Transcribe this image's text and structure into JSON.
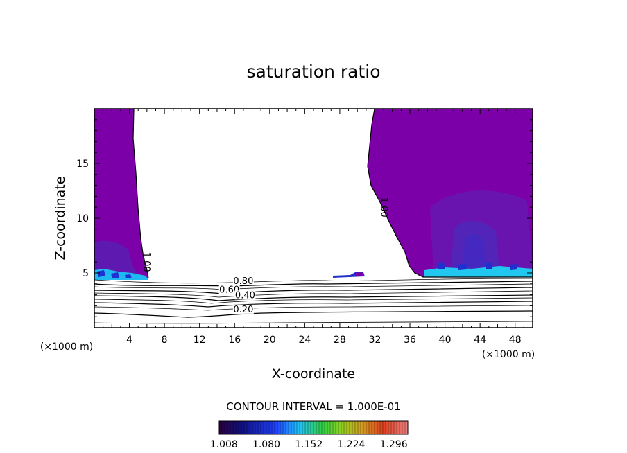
{
  "chart_data": {
    "type": "heatmap",
    "title": "saturation ratio",
    "xlabel": "X-coordinate",
    "ylabel": "Z-coordinate",
    "x_unit": "(×1000 m)",
    "y_unit": "(×1000 m)",
    "xlim": [
      0,
      50
    ],
    "ylim": [
      0,
      20
    ],
    "x_ticks": [
      4,
      8,
      12,
      16,
      20,
      24,
      28,
      32,
      36,
      40,
      44,
      48
    ],
    "y_ticks": [
      5,
      10,
      15
    ],
    "contour_interval_text": "CONTOUR INTERVAL = 1.000E-01",
    "contour_labels": [
      {
        "text": "0.80",
        "x": 17.0,
        "y": 4.0
      },
      {
        "text": "0.60",
        "x": 15.4,
        "y": 3.2
      },
      {
        "text": "0.40",
        "x": 17.2,
        "y": 2.7
      },
      {
        "text": "0.20",
        "x": 17.0,
        "y": 1.4
      },
      {
        "text": "1.00",
        "x": 5.6,
        "y": 6.0
      },
      {
        "text": "1.00",
        "x": 32.7,
        "y": 11.0
      }
    ],
    "colorbar": {
      "ticks": [
        "1.008",
        "1.080",
        "1.152",
        "1.224",
        "1.296"
      ],
      "min": 1.0,
      "max": 1.32
    },
    "colors": {
      "supersat_base": "#7b00a8",
      "deep_blue": "#5020b0",
      "blue": "#2040e0",
      "cyan": "#20d0f0"
    }
  }
}
